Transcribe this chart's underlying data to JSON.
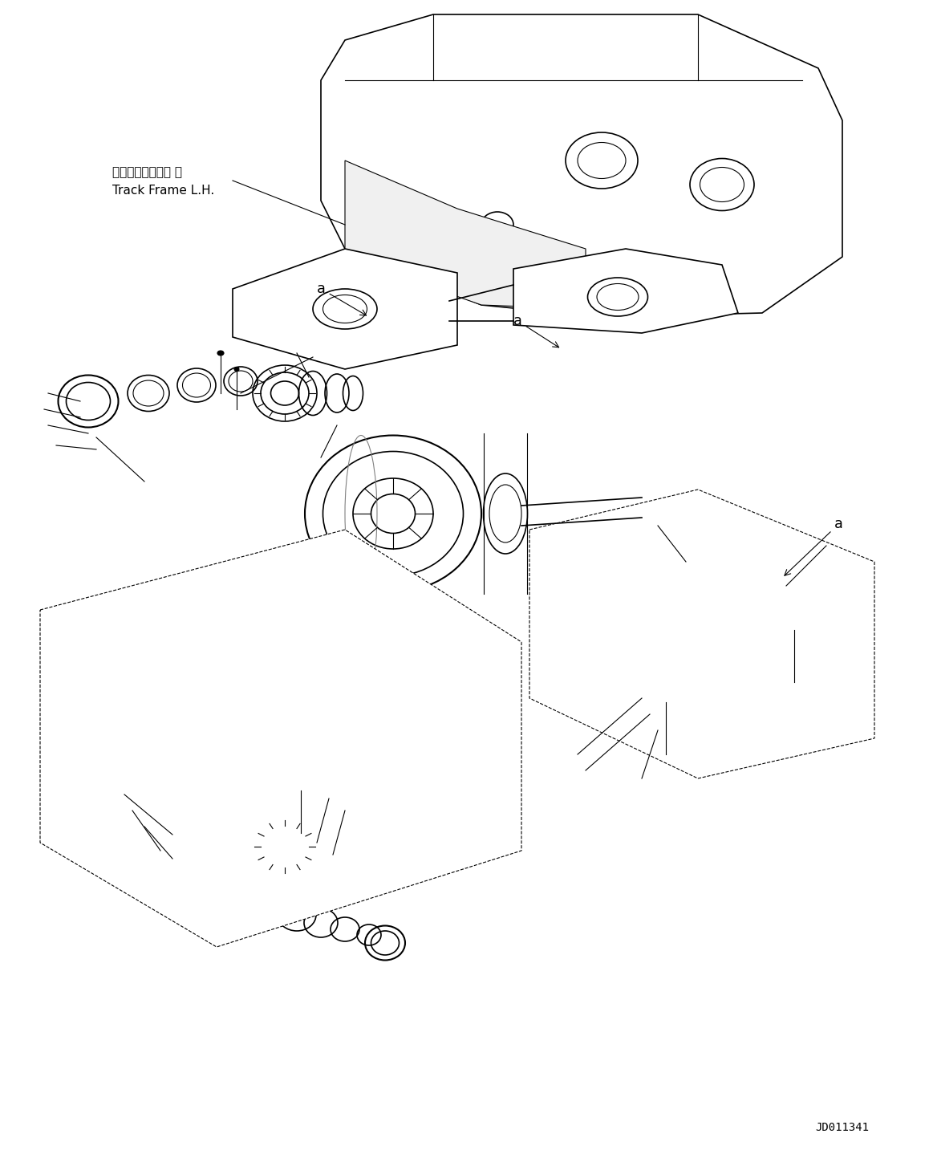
{
  "background_color": "#ffffff",
  "fig_width": 11.63,
  "fig_height": 14.38,
  "dpi": 100,
  "label_japanese": "トラックフレーム 左",
  "label_english": "Track Frame L.H.",
  "watermark": "JD011341",
  "annotations": [
    "a",
    "a",
    "a"
  ]
}
